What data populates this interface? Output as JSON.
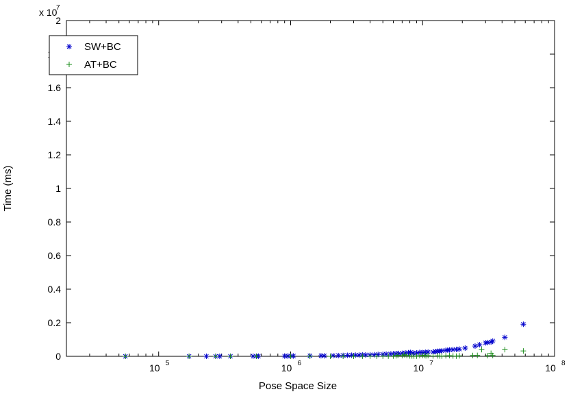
{
  "chart_data": {
    "type": "scatter",
    "title": "",
    "xlabel": "Pose Space Size",
    "ylabel": "Time (ms)",
    "x_scale": "log",
    "xlim": [
      20000,
      100000000
    ],
    "ylim": [
      0,
      20000000
    ],
    "y_exponent_label": "x 10",
    "y_exponent_power": "7",
    "grid": false,
    "legend_position": "top-left",
    "x_ticks": [
      {
        "value": 100000,
        "base": "10",
        "exp": "5"
      },
      {
        "value": 1000000,
        "base": "10",
        "exp": "6"
      },
      {
        "value": 10000000,
        "base": "10",
        "exp": "7"
      },
      {
        "value": 100000000,
        "base": "10",
        "exp": "8"
      }
    ],
    "y_ticks": [
      {
        "value": 0,
        "label": "0"
      },
      {
        "value": 2000000,
        "label": "0.2"
      },
      {
        "value": 4000000,
        "label": "0.4"
      },
      {
        "value": 6000000,
        "label": "0.6"
      },
      {
        "value": 8000000,
        "label": "0.8"
      },
      {
        "value": 10000000,
        "label": "1"
      },
      {
        "value": 12000000,
        "label": "1.2"
      },
      {
        "value": 14000000,
        "label": "1.4"
      },
      {
        "value": 16000000,
        "label": "1.6"
      },
      {
        "value": 18000000,
        "label": "1.8"
      },
      {
        "value": 20000000,
        "label": "2"
      }
    ],
    "series": [
      {
        "name": "SW+BC",
        "marker": "*",
        "color": "#0000cc",
        "points": [
          [
            56000,
            1000
          ],
          [
            170000,
            2000
          ],
          [
            230000,
            3000
          ],
          [
            270000,
            3000
          ],
          [
            290000,
            4000
          ],
          [
            350000,
            5000
          ],
          [
            520000,
            8000
          ],
          [
            550000,
            8000
          ],
          [
            570000,
            9000
          ],
          [
            900000,
            15000
          ],
          [
            950000,
            16000
          ],
          [
            1000000,
            20000
          ],
          [
            1050000,
            20000
          ],
          [
            1400000,
            30000
          ],
          [
            1700000,
            35000
          ],
          [
            1800000,
            30000
          ],
          [
            2100000,
            40000
          ],
          [
            2300000,
            45000
          ],
          [
            2500000,
            50000
          ],
          [
            2700000,
            60000
          ],
          [
            2900000,
            65000
          ],
          [
            3100000,
            70000
          ],
          [
            3300000,
            75000
          ],
          [
            3500000,
            80000
          ],
          [
            3700000,
            85000
          ],
          [
            4000000,
            90000
          ],
          [
            4300000,
            95000
          ],
          [
            4600000,
            110000
          ],
          [
            5000000,
            120000
          ],
          [
            5300000,
            130000
          ],
          [
            5700000,
            140000
          ],
          [
            6000000,
            150000
          ],
          [
            6300000,
            160000
          ],
          [
            6600000,
            170000
          ],
          [
            7000000,
            180000
          ],
          [
            7400000,
            200000
          ],
          [
            7800000,
            215000
          ],
          [
            8100000,
            230000
          ],
          [
            8500000,
            190000
          ],
          [
            9000000,
            200000
          ],
          [
            9500000,
            230000
          ],
          [
            10000000,
            220000
          ],
          [
            10500000,
            240000
          ],
          [
            11000000,
            250000
          ],
          [
            12000000,
            250000
          ],
          [
            12500000,
            280000
          ],
          [
            13000000,
            300000
          ],
          [
            13500000,
            310000
          ],
          [
            14000000,
            330000
          ],
          [
            15000000,
            360000
          ],
          [
            15500000,
            370000
          ],
          [
            16000000,
            380000
          ],
          [
            17000000,
            400000
          ],
          [
            18000000,
            410000
          ],
          [
            19000000,
            430000
          ],
          [
            21000000,
            490000
          ],
          [
            25000000,
            610000
          ],
          [
            27000000,
            690000
          ],
          [
            30000000,
            800000
          ],
          [
            31000000,
            820000
          ],
          [
            33000000,
            850000
          ],
          [
            34000000,
            910000
          ],
          [
            42000000,
            1130000
          ],
          [
            58000000,
            1910000
          ]
        ]
      },
      {
        "name": "AT+BC",
        "marker": "+",
        "color": "#1a8c1a",
        "points": [
          [
            56000,
            300
          ],
          [
            170000,
            800
          ],
          [
            270000,
            1000
          ],
          [
            350000,
            1000
          ],
          [
            550000,
            2000
          ],
          [
            1000000,
            5000
          ],
          [
            1400000,
            3000
          ],
          [
            2000000,
            2000
          ],
          [
            2500000,
            2000
          ],
          [
            3000000,
            2000
          ],
          [
            3500000,
            3000
          ],
          [
            4000000,
            5000
          ],
          [
            4500000,
            6000
          ],
          [
            5000000,
            8000
          ],
          [
            5500000,
            10000
          ],
          [
            6000000,
            15000
          ],
          [
            6300000,
            30000
          ],
          [
            6500000,
            60000
          ],
          [
            7000000,
            40000
          ],
          [
            7300000,
            90000
          ],
          [
            7600000,
            50000
          ],
          [
            8000000,
            25000
          ],
          [
            8300000,
            20000
          ],
          [
            8600000,
            15000
          ],
          [
            9000000,
            10000
          ],
          [
            9500000,
            40000
          ],
          [
            10000000,
            50000
          ],
          [
            10300000,
            55000
          ],
          [
            10600000,
            30000
          ],
          [
            11000000,
            40000
          ],
          [
            12000000,
            20000
          ],
          [
            13000000,
            30000
          ],
          [
            13500000,
            20000
          ],
          [
            14000000,
            10000
          ],
          [
            15000000,
            30000
          ],
          [
            16000000,
            40000
          ],
          [
            17000000,
            20000
          ],
          [
            18000000,
            10000
          ],
          [
            19000000,
            30000
          ],
          [
            24000000,
            50000
          ],
          [
            26000000,
            55000
          ],
          [
            28000000,
            400000
          ],
          [
            31000000,
            40000
          ],
          [
            33000000,
            180000
          ],
          [
            34000000,
            50000
          ],
          [
            42000000,
            400000
          ],
          [
            58000000,
            320000
          ]
        ]
      }
    ]
  }
}
